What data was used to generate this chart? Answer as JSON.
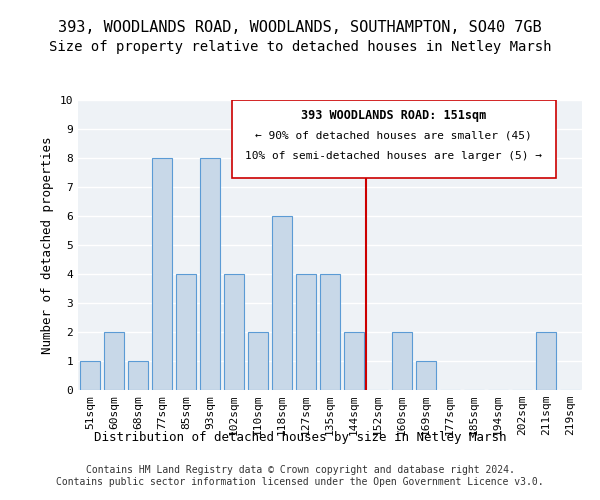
{
  "title": "393, WOODLANDS ROAD, WOODLANDS, SOUTHAMPTON, SO40 7GB",
  "subtitle": "Size of property relative to detached houses in Netley Marsh",
  "xlabel": "Distribution of detached houses by size in Netley Marsh",
  "ylabel": "Number of detached properties",
  "bins": [
    "51sqm",
    "60sqm",
    "68sqm",
    "77sqm",
    "85sqm",
    "93sqm",
    "102sqm",
    "110sqm",
    "118sqm",
    "127sqm",
    "135sqm",
    "144sqm",
    "152sqm",
    "160sqm",
    "169sqm",
    "177sqm",
    "185sqm",
    "194sqm",
    "202sqm",
    "211sqm",
    "219sqm"
  ],
  "counts": [
    1,
    2,
    1,
    8,
    4,
    8,
    4,
    2,
    6,
    4,
    4,
    2,
    0,
    2,
    1,
    0,
    0,
    0,
    0,
    2,
    0
  ],
  "bar_color": "#c8d8e8",
  "bar_edge_color": "#5b9bd5",
  "property_line_x": 12.0,
  "property_line_color": "#cc0000",
  "annotation_title": "393 WOODLANDS ROAD: 151sqm",
  "annotation_line1": "← 90% of detached houses are smaller (45)",
  "annotation_line2": "10% of semi-detached houses are larger (5) →",
  "ylim": [
    0,
    10
  ],
  "yticks": [
    0,
    1,
    2,
    3,
    4,
    5,
    6,
    7,
    8,
    9,
    10
  ],
  "background_color": "#eef2f6",
  "footer": "Contains HM Land Registry data © Crown copyright and database right 2024.\nContains public sector information licensed under the Open Government Licence v3.0.",
  "title_fontsize": 11,
  "subtitle_fontsize": 10,
  "axis_label_fontsize": 9,
  "tick_fontsize": 8,
  "footer_fontsize": 7
}
